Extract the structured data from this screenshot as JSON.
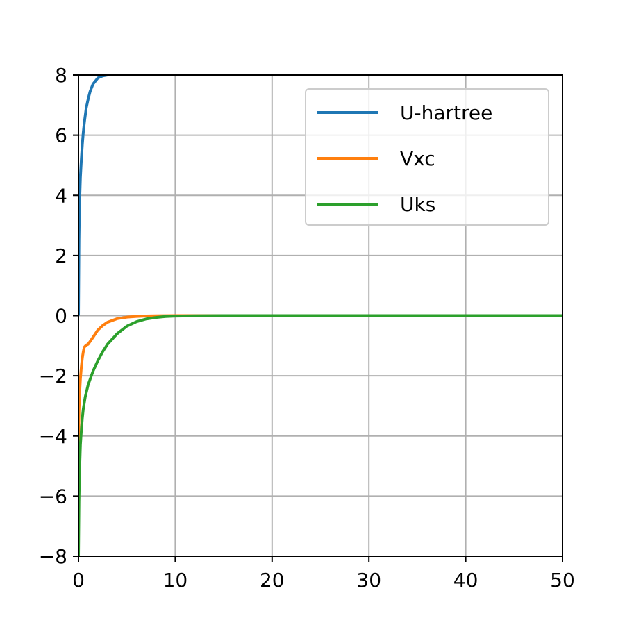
{
  "chart_data": {
    "type": "line",
    "title": "",
    "xlabel": "",
    "ylabel": "",
    "xlim": [
      0,
      50
    ],
    "ylim": [
      -8,
      8
    ],
    "xticks": [
      0,
      10,
      20,
      30,
      40,
      50
    ],
    "yticks": [
      -8,
      -6,
      -4,
      -2,
      0,
      2,
      4,
      6,
      8
    ],
    "xtick_labels": [
      "0",
      "10",
      "20",
      "30",
      "40",
      "50"
    ],
    "ytick_labels": [
      "−8",
      "−6",
      "−4",
      "−2",
      "0",
      "2",
      "4",
      "6",
      "8"
    ],
    "grid": true,
    "legend_position": "upper right",
    "series": [
      {
        "name": "U-hartree",
        "color": "#1f77b4",
        "x": [
          0,
          0.05,
          0.1,
          0.2,
          0.3,
          0.4,
          0.5,
          0.6,
          0.8,
          1.0,
          1.2,
          1.5,
          2.0,
          2.5,
          3.0,
          4.0,
          5.0,
          6.0,
          8.0,
          10.0
        ],
        "y": [
          0,
          2.5,
          3.6,
          4.6,
          5.2,
          5.7,
          6.1,
          6.4,
          6.9,
          7.2,
          7.45,
          7.7,
          7.9,
          7.97,
          8.0,
          8.0,
          8.0,
          8.0,
          8.0,
          8.0
        ]
      },
      {
        "name": "Vxc",
        "color": "#ff7f0e",
        "x": [
          0,
          0.05,
          0.1,
          0.2,
          0.3,
          0.4,
          0.5,
          0.6,
          0.8,
          1.0,
          1.5,
          2.0,
          2.5,
          3.0,
          4.0,
          5.0,
          6.0,
          7.0,
          8.0,
          9.0,
          10.0,
          15.0,
          20.0,
          30.0,
          40.0,
          50.0
        ],
        "y": [
          -4.2,
          -3.2,
          -2.7,
          -2.1,
          -1.7,
          -1.4,
          -1.2,
          -1.05,
          -0.98,
          -0.95,
          -0.72,
          -0.48,
          -0.33,
          -0.22,
          -0.1,
          -0.05,
          -0.025,
          -0.012,
          -0.006,
          -0.003,
          0,
          0,
          0,
          0,
          0,
          0
        ]
      },
      {
        "name": "Uks",
        "color": "#2ca02c",
        "x": [
          0,
          0.05,
          0.1,
          0.2,
          0.3,
          0.4,
          0.5,
          0.7,
          1.0,
          1.5,
          2.0,
          2.5,
          3.0,
          4.0,
          5.0,
          6.0,
          7.0,
          8.0,
          9.0,
          10.0,
          12.0,
          15.0,
          20.0,
          30.0,
          40.0,
          50.0
        ],
        "y": [
          -8.0,
          -6.2,
          -5.3,
          -4.3,
          -3.8,
          -3.4,
          -3.1,
          -2.7,
          -2.3,
          -1.85,
          -1.5,
          -1.2,
          -0.95,
          -0.6,
          -0.35,
          -0.2,
          -0.11,
          -0.06,
          -0.03,
          -0.015,
          -0.005,
          0,
          0,
          0,
          0,
          0
        ]
      }
    ]
  }
}
